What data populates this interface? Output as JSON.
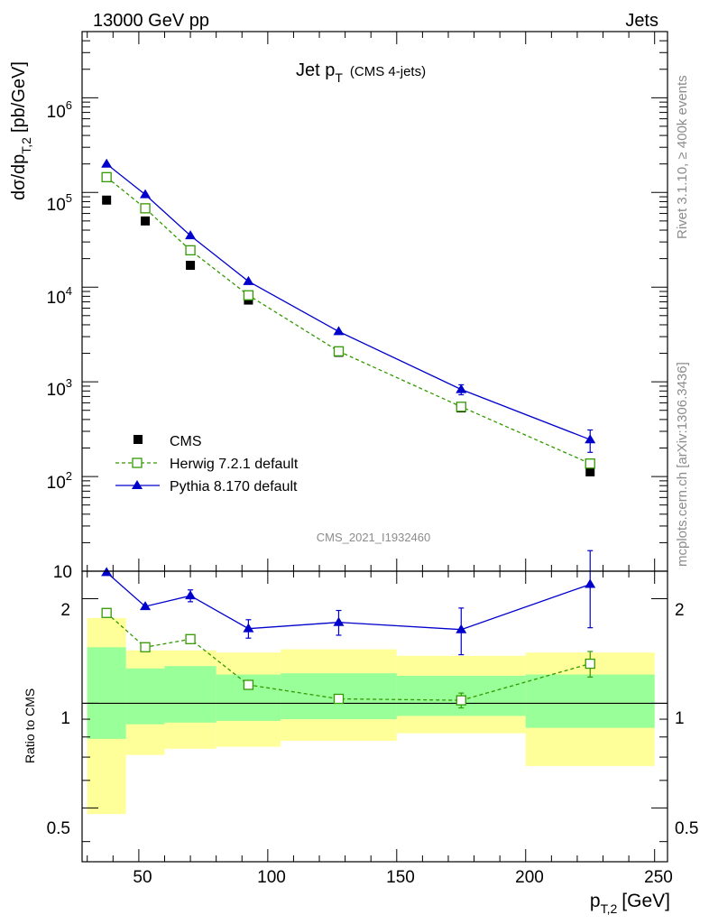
{
  "header": {
    "process": "13000 GeV pp",
    "group": "Jets",
    "side_note_rivet": "Rivet 3.1.10, ≥ 400k events",
    "side_note_site": "mcplots.cern.ch [arXiv:1306.3436]",
    "analysis_id": "CMS_2021_I1932460"
  },
  "chart_data": [
    {
      "type": "scatter",
      "title_main": "Jet p",
      "title_sub": "T",
      "title_suffix": "(CMS 4-jets)",
      "ylabel_main": "dσ/dp",
      "ylabel_sub": "T,2",
      "ylabel_units": "[pb/GeV]",
      "xlim": [
        28,
        255
      ],
      "ylim": [
        10,
        5000000
      ],
      "yscale": "log",
      "y_ticklabels": [
        {
          "base": "10",
          "exp": ""
        },
        {
          "base": "10",
          "exp": "2"
        },
        {
          "base": "10",
          "exp": "3"
        },
        {
          "base": "10",
          "exp": "4"
        },
        {
          "base": "10",
          "exp": "5"
        },
        {
          "base": "10",
          "exp": "6"
        }
      ],
      "legend_position": "bottom-left",
      "x": [
        37.5,
        52.5,
        70,
        92.5,
        127.5,
        175,
        225
      ],
      "bin_edges": [
        30,
        45,
        60,
        80,
        105,
        150,
        200,
        250
      ],
      "series": [
        {
          "name": "CMS",
          "marker": "square-filled",
          "color": "#000000",
          "values": [
            83000,
            50000,
            17000,
            7300,
            2050,
            530,
            112
          ]
        },
        {
          "name": "Herwig 7.2.1 default",
          "marker": "square-open",
          "line": "dashed",
          "color": "#339900",
          "values": [
            145000,
            68000,
            24500,
            8200,
            2100,
            545,
            137
          ]
        },
        {
          "name": "Pythia 8.170 default",
          "marker": "triangle-filled",
          "line": "solid",
          "color": "#0000cc",
          "values": [
            200000,
            95000,
            35000,
            11500,
            3400,
            830,
            245
          ],
          "errors": [
            0,
            0,
            0,
            0,
            0,
            100,
            65
          ]
        }
      ]
    },
    {
      "type": "scatter",
      "ylabel": "Ratio to CMS",
      "xlabel_main": "p",
      "xlabel_sub": "T,2",
      "xlabel_units": "[GeV]",
      "xlim": [
        28,
        255
      ],
      "ylim": [
        0.35,
        2.4
      ],
      "yscale": "log",
      "y_ticks": [
        0.5,
        1,
        2
      ],
      "y_ticklabels": [
        "0.5",
        "1",
        "2"
      ],
      "x_ticks": [
        50,
        100,
        150,
        200,
        250
      ],
      "x_ticklabels": [
        "50",
        "100",
        "150",
        "200",
        "250"
      ],
      "bands": {
        "bin_edges": [
          30,
          45,
          60,
          80,
          105,
          150,
          200,
          250
        ],
        "yellow_low": [
          0.48,
          0.71,
          0.74,
          0.75,
          0.78,
          0.82,
          0.66
        ],
        "yellow_high": [
          1.76,
          1.42,
          1.42,
          1.4,
          1.43,
          1.37,
          1.4
        ],
        "green_low": [
          0.79,
          0.87,
          0.88,
          0.89,
          0.9,
          0.92,
          0.85
        ],
        "green_high": [
          1.45,
          1.26,
          1.28,
          1.21,
          1.22,
          1.2,
          1.21
        ]
      },
      "x": [
        37.5,
        52.5,
        70,
        92.5,
        127.5,
        175,
        225
      ],
      "series": [
        {
          "name": "Herwig 7.2.1 default",
          "marker": "square-open",
          "line": "dashed",
          "color": "#339900",
          "values": [
            1.82,
            1.45,
            1.53,
            1.13,
            1.03,
            1.02,
            1.3
          ],
          "errors": [
            0,
            0,
            0,
            0,
            0,
            0.05,
            0.11
          ]
        },
        {
          "name": "Pythia 8.170 default",
          "marker": "triangle-filled",
          "line": "solid",
          "color": "#0000cc",
          "values": [
            2.38,
            1.9,
            2.04,
            1.64,
            1.71,
            1.63,
            2.2
          ],
          "errors": [
            0,
            0,
            0.08,
            0.1,
            0.14,
            0.25,
            0.55
          ]
        }
      ]
    }
  ]
}
